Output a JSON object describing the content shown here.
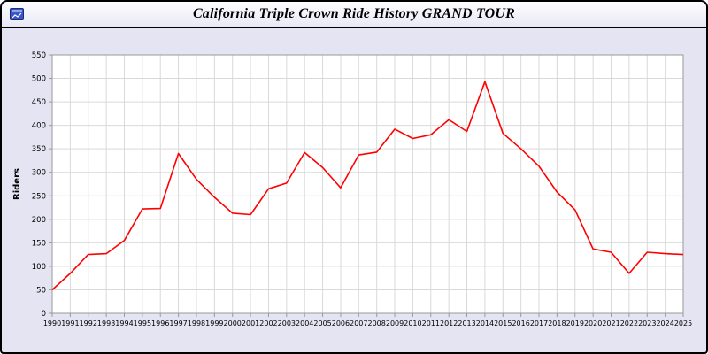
{
  "header": {
    "title": "California Triple Crown Ride History GRAND TOUR",
    "icon": "chart-window-icon"
  },
  "colors": {
    "line": "#ff0000",
    "page_background": "#e4e4f2",
    "plot_background": "#ffffff",
    "gridline": "#d9d9d9",
    "axis_border": "#9a9a9a",
    "text": "#000000"
  },
  "chart_data": {
    "type": "line",
    "title": "California Triple Crown Ride History GRAND TOUR",
    "x": [
      1990,
      1991,
      1992,
      1993,
      1994,
      1995,
      1996,
      1997,
      1998,
      1999,
      2000,
      2001,
      2002,
      2003,
      2004,
      2005,
      2006,
      2007,
      2008,
      2009,
      2010,
      2011,
      2012,
      2013,
      2014,
      2015,
      2016,
      2017,
      2018,
      2019,
      2020,
      2021,
      2022,
      2023,
      2024,
      2025
    ],
    "series": [
      {
        "name": "Riders",
        "color": "#ff0000",
        "values": [
          50,
          85,
          125,
          127,
          155,
          222,
          223,
          340,
          285,
          247,
          213,
          210,
          265,
          277,
          342,
          310,
          267,
          337,
          343,
          392,
          372,
          380,
          412,
          387,
          493,
          383,
          350,
          313,
          258,
          220,
          137,
          130,
          85,
          130,
          127,
          125
        ]
      }
    ],
    "xlabel": "",
    "ylabel": "Riders",
    "ylim": [
      0,
      550
    ],
    "ytick_step": 50,
    "grid": true,
    "legend_position": "none"
  }
}
